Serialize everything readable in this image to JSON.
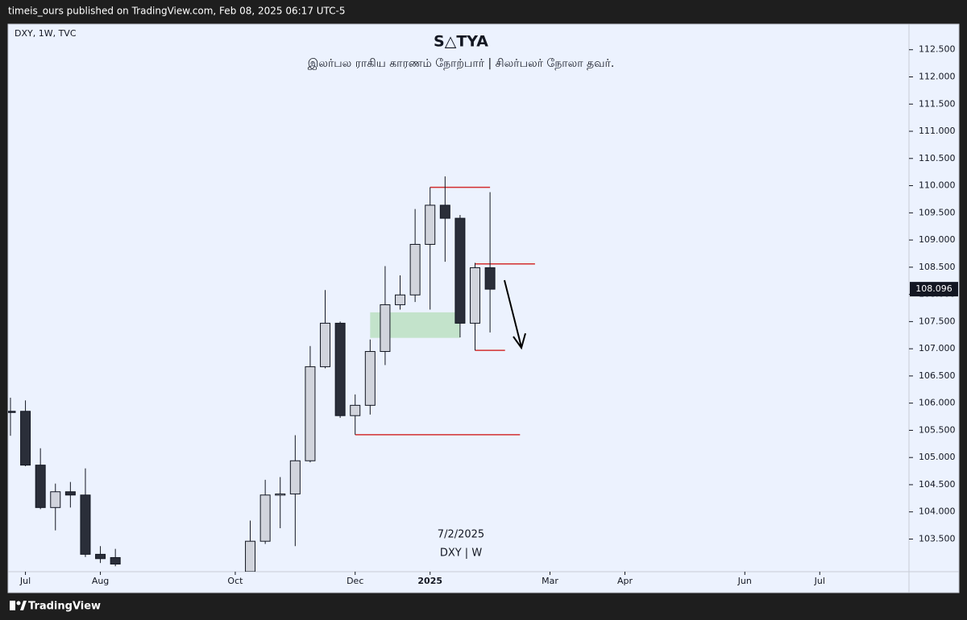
{
  "header": {
    "text": "timeis_ours published on TradingView.com, Feb 08, 2025 06:17 UTC-5"
  },
  "footer": {
    "brand": "TradingView"
  },
  "chart_data": {
    "type": "candlestick",
    "symbol": "DXY, 1W, TVC",
    "title": "S△TYA",
    "subtitle": "இலர்பல ராகிய காரணம் நோற்பார் | சிலர்பலர் நோலா தவர்.",
    "watermark_date": "7/2/2025",
    "watermark_symbol": "DXY | W",
    "x": [
      0,
      1,
      2,
      3,
      4,
      5,
      6,
      7,
      16,
      17,
      18,
      19,
      20,
      21,
      22,
      23,
      24,
      25,
      26,
      27,
      28,
      29,
      30,
      31,
      32
    ],
    "open": [
      105.85,
      105.85,
      104.86,
      104.08,
      104.37,
      104.31,
      103.22,
      103.16,
      102.9,
      103.46,
      104.31,
      104.33,
      104.94,
      106.67,
      107.47,
      105.77,
      105.96,
      106.95,
      107.81,
      107.99,
      108.92,
      109.64,
      109.4,
      107.47,
      108.49
    ],
    "high": [
      106.1,
      106.05,
      105.17,
      104.52,
      104.55,
      104.8,
      103.37,
      103.32,
      103.84,
      104.59,
      104.64,
      105.41,
      107.05,
      108.08,
      107.5,
      106.16,
      107.17,
      108.52,
      108.35,
      109.57,
      109.97,
      110.17,
      109.46,
      108.58,
      109.88
    ],
    "low": [
      105.4,
      104.84,
      104.05,
      103.66,
      104.08,
      103.17,
      103.06,
      103.0,
      102.8,
      103.41,
      103.7,
      103.37,
      104.91,
      106.64,
      105.73,
      105.42,
      105.79,
      106.7,
      107.72,
      107.86,
      107.72,
      108.6,
      107.21,
      106.97,
      107.3
    ],
    "close": [
      105.83,
      104.86,
      104.08,
      104.37,
      104.31,
      103.22,
      103.14,
      103.04,
      103.46,
      104.31,
      104.33,
      104.94,
      106.67,
      107.47,
      105.77,
      105.96,
      106.95,
      107.81,
      107.99,
      108.92,
      109.64,
      109.4,
      107.47,
      108.49,
      108.096
    ],
    "up_color": "#d1d4dc",
    "down_color": "#2a2e39",
    "last_price": 108.096,
    "zones": [
      {
        "top": 107.67,
        "bottom": 107.2,
        "from": 24,
        "to": 30,
        "color": "#c3e3cb"
      }
    ],
    "levels": [
      {
        "value": 109.97,
        "from": 28,
        "to": 32,
        "color": "#d32f2f"
      },
      {
        "value": 108.56,
        "from": 31,
        "to": 35,
        "color": "#d32f2f"
      },
      {
        "value": 106.97,
        "from": 31,
        "to": 33,
        "color": "#d32f2f"
      },
      {
        "value": 105.42,
        "from": 23,
        "to": 34,
        "color": "#d32f2f"
      }
    ],
    "xlim": [
      -0.16,
      59.9
    ],
    "ylim": [
      102.9,
      112.97
    ],
    "xticks": [
      {
        "value": 1,
        "label": "Jul"
      },
      {
        "value": 6,
        "label": "Aug"
      },
      {
        "value": 15,
        "label": "Oct"
      },
      {
        "value": 23,
        "label": "Dec"
      },
      {
        "value": 28,
        "label": "2025"
      },
      {
        "value": 36,
        "label": "Mar"
      },
      {
        "value": 41,
        "label": "Apr"
      },
      {
        "value": 49,
        "label": "Jun"
      },
      {
        "value": 54,
        "label": "Jul"
      }
    ],
    "yticks": [
      {
        "value": 103.5,
        "label": "103.500"
      },
      {
        "value": 104,
        "label": "104.000"
      },
      {
        "value": 104.5,
        "label": "104.500"
      },
      {
        "value": 105,
        "label": "105.000"
      },
      {
        "value": 105.5,
        "label": "105.500"
      },
      {
        "value": 106,
        "label": "106.000"
      },
      {
        "value": 106.5,
        "label": "106.500"
      },
      {
        "value": 107,
        "label": "107.000"
      },
      {
        "value": 107.5,
        "label": "107.500"
      },
      {
        "value": 108,
        "label": "108.000"
      },
      {
        "value": 108.5,
        "label": "108.500"
      },
      {
        "value": 109,
        "label": "109.000"
      },
      {
        "value": 109.5,
        "label": "109.500"
      },
      {
        "value": 110,
        "label": "110.000"
      },
      {
        "value": 110.5,
        "label": "110.500"
      },
      {
        "value": 111,
        "label": "111.000"
      },
      {
        "value": 111.5,
        "label": "111.500"
      },
      {
        "value": 112,
        "label": "112.000"
      },
      {
        "value": 112.5,
        "label": "112.500"
      }
    ]
  }
}
